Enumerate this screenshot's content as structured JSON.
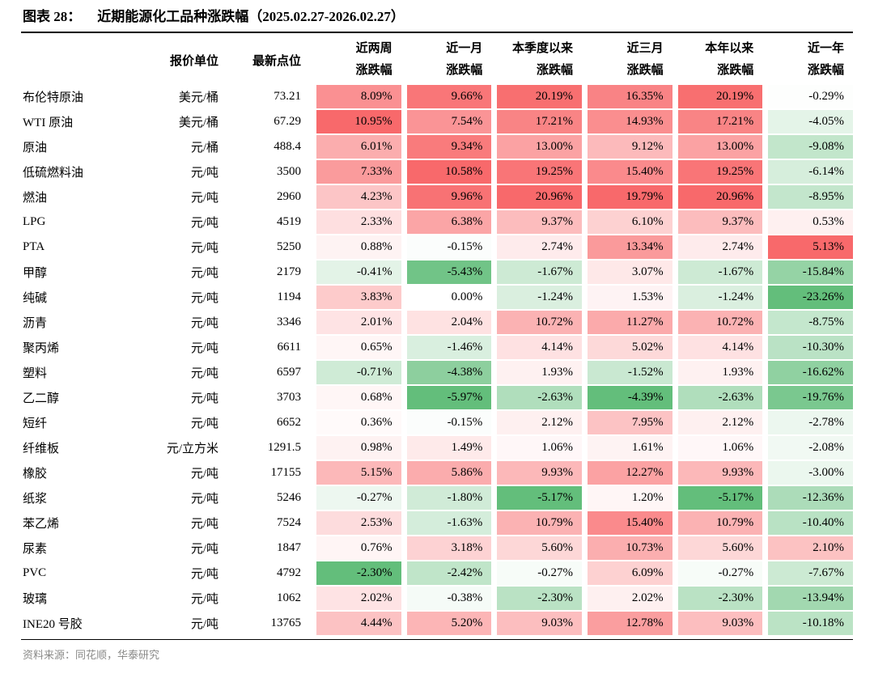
{
  "figure_label": "图表 28：",
  "source": "资料来源：同花顺，华泰研究",
  "chart_data": {
    "type": "heatmap",
    "title": "近期能源化工品种涨跌幅（2025.02.27-2026.02.27）",
    "column_headers": {
      "unit": "报价单位",
      "price": "最新点位"
    },
    "change_columns": [
      {
        "line1": "近两周",
        "line2": "涨跌幅"
      },
      {
        "line1": "近一月",
        "line2": "涨跌幅"
      },
      {
        "line1": "本季度以来",
        "line2": "涨跌幅"
      },
      {
        "line1": "近三月",
        "line2": "涨跌幅"
      },
      {
        "line1": "本年以来",
        "line2": "涨跌幅"
      },
      {
        "line1": "近一年",
        "line2": "涨跌幅"
      }
    ],
    "colormap": {
      "positive_max": "#f8696b",
      "negative_min": "#63be7b",
      "neutral": "#ffffff"
    },
    "rows": [
      {
        "name": "布伦特原油",
        "unit": "美元/桶",
        "price": "73.21",
        "changes": [
          8.09,
          9.66,
          20.19,
          16.35,
          20.19,
          -0.29
        ]
      },
      {
        "name": "WTI 原油",
        "unit": "美元/桶",
        "price": "67.29",
        "changes": [
          10.95,
          7.54,
          17.21,
          14.93,
          17.21,
          -4.05
        ]
      },
      {
        "name": "原油",
        "unit": "元/桶",
        "price": "488.4",
        "changes": [
          6.01,
          9.34,
          13.0,
          9.12,
          13.0,
          -9.08
        ]
      },
      {
        "name": "低硫燃料油",
        "unit": "元/吨",
        "price": "3500",
        "changes": [
          7.33,
          10.58,
          19.25,
          15.4,
          19.25,
          -6.14
        ]
      },
      {
        "name": "燃油",
        "unit": "元/吨",
        "price": "2960",
        "changes": [
          4.23,
          9.96,
          20.96,
          19.79,
          20.96,
          -8.95
        ]
      },
      {
        "name": "LPG",
        "unit": "元/吨",
        "price": "4519",
        "changes": [
          2.33,
          6.38,
          9.37,
          6.1,
          9.37,
          0.53
        ]
      },
      {
        "name": "PTA",
        "unit": "元/吨",
        "price": "5250",
        "changes": [
          0.88,
          -0.15,
          2.74,
          13.34,
          2.74,
          5.13
        ]
      },
      {
        "name": "甲醇",
        "unit": "元/吨",
        "price": "2179",
        "changes": [
          -0.41,
          -5.43,
          -1.67,
          3.07,
          -1.67,
          -15.84
        ]
      },
      {
        "name": "纯碱",
        "unit": "元/吨",
        "price": "1194",
        "changes": [
          3.83,
          0.0,
          -1.24,
          1.53,
          -1.24,
          -23.26
        ]
      },
      {
        "name": "沥青",
        "unit": "元/吨",
        "price": "3346",
        "changes": [
          2.01,
          2.04,
          10.72,
          11.27,
          10.72,
          -8.75
        ]
      },
      {
        "name": "聚丙烯",
        "unit": "元/吨",
        "price": "6611",
        "changes": [
          0.65,
          -1.46,
          4.14,
          5.02,
          4.14,
          -10.3
        ]
      },
      {
        "name": "塑料",
        "unit": "元/吨",
        "price": "6597",
        "changes": [
          -0.71,
          -4.38,
          1.93,
          -1.52,
          1.93,
          -16.62
        ]
      },
      {
        "name": "乙二醇",
        "unit": "元/吨",
        "price": "3703",
        "changes": [
          0.68,
          -5.97,
          -2.63,
          -4.39,
          -2.63,
          -19.76
        ]
      },
      {
        "name": "短纤",
        "unit": "元/吨",
        "price": "6652",
        "changes": [
          0.36,
          -0.15,
          2.12,
          7.95,
          2.12,
          -2.78
        ]
      },
      {
        "name": "纤维板",
        "unit": "元/立方米",
        "price": "1291.5",
        "changes": [
          0.98,
          1.49,
          1.06,
          1.61,
          1.06,
          -2.08
        ]
      },
      {
        "name": "橡胶",
        "unit": "元/吨",
        "price": "17155",
        "changes": [
          5.15,
          5.86,
          9.93,
          12.27,
          9.93,
          -3.0
        ]
      },
      {
        "name": "纸浆",
        "unit": "元/吨",
        "price": "5246",
        "changes": [
          -0.27,
          -1.8,
          -5.17,
          1.2,
          -5.17,
          -12.36
        ]
      },
      {
        "name": "苯乙烯",
        "unit": "元/吨",
        "price": "7524",
        "changes": [
          2.53,
          -1.63,
          10.79,
          15.4,
          10.79,
          -10.4
        ]
      },
      {
        "name": "尿素",
        "unit": "元/吨",
        "price": "1847",
        "changes": [
          0.76,
          3.18,
          5.6,
          10.73,
          5.6,
          2.1
        ]
      },
      {
        "name": "PVC",
        "unit": "元/吨",
        "price": "4792",
        "changes": [
          -2.3,
          -2.42,
          -0.27,
          6.09,
          -0.27,
          -7.67
        ]
      },
      {
        "name": "玻璃",
        "unit": "元/吨",
        "price": "1062",
        "changes": [
          2.02,
          -0.38,
          -2.3,
          2.02,
          -2.3,
          -13.94
        ]
      },
      {
        "name": "INE20 号胶",
        "unit": "元/吨",
        "price": "13765",
        "changes": [
          4.44,
          5.2,
          9.03,
          12.78,
          9.03,
          -10.18
        ]
      }
    ]
  }
}
